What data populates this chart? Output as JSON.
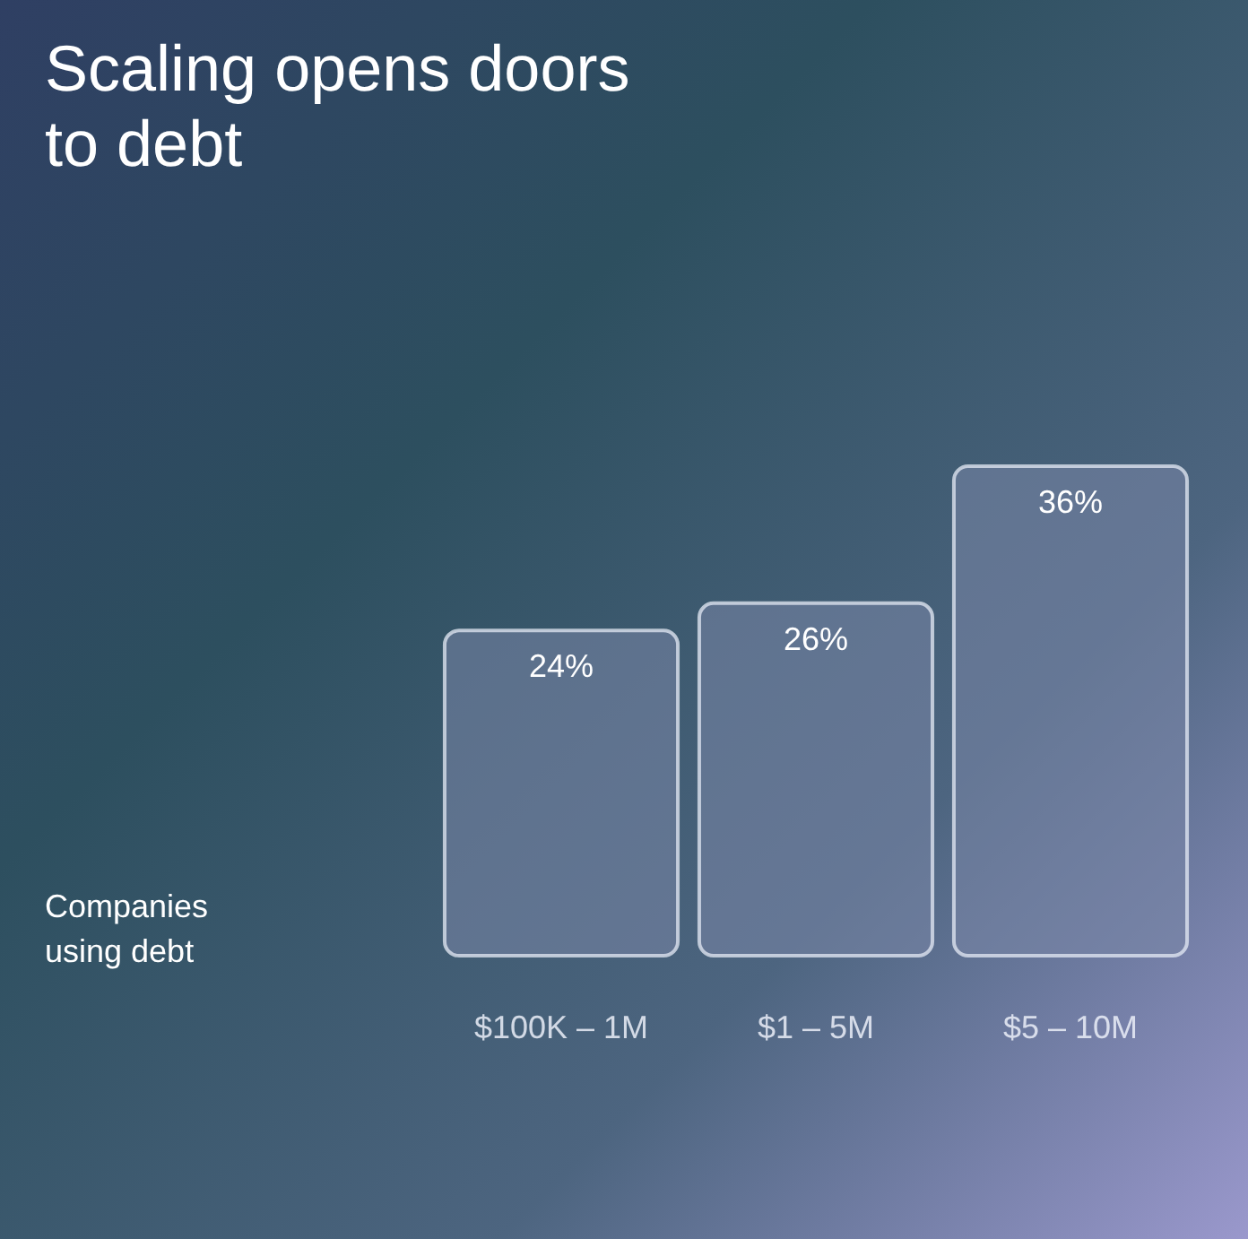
{
  "chart_data": {
    "type": "bar",
    "title": "Scaling opens doors\nto debt",
    "annotations": [
      "Companies\nusing debt"
    ],
    "categories": [
      "$100K – 1M",
      "$1 – 5M",
      "$5 – 10M"
    ],
    "values": [
      24,
      26,
      36
    ],
    "color": "#7a87a8",
    "value_labels": [
      "24%",
      "26%",
      "36%"
    ]
  }
}
